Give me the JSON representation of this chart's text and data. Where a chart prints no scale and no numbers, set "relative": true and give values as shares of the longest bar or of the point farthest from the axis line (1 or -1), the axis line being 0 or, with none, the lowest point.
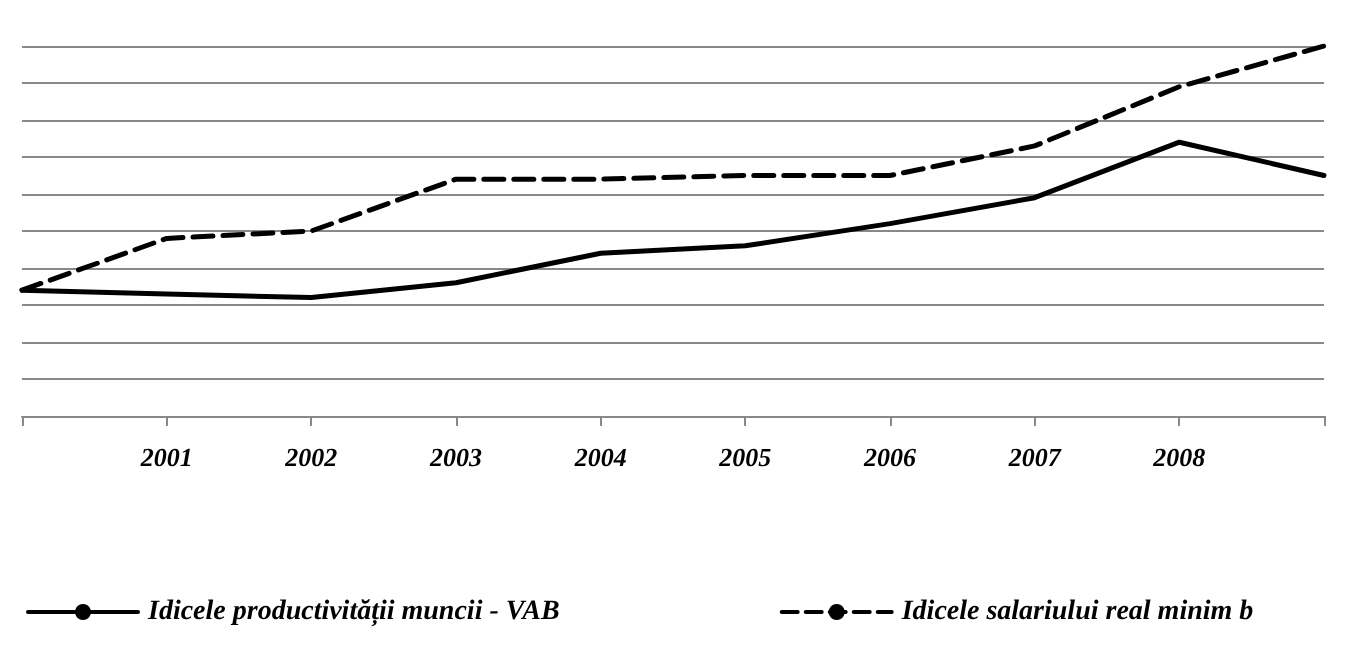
{
  "chart_data": {
    "type": "line",
    "relative": true,
    "categories": [
      null,
      "2001",
      "2002",
      "2003",
      "2004",
      "2005",
      "2006",
      "2007",
      "2008",
      null
    ],
    "series": [
      {
        "name": "Idicele productivității muncii - VAB",
        "color": "#000000",
        "line_style": "solid",
        "values": [
          0.34,
          0.33,
          0.32,
          0.36,
          0.44,
          0.46,
          0.52,
          0.59,
          0.74,
          0.65
        ]
      },
      {
        "name": "Idicele salariului real minim b",
        "color": "#000000",
        "line_style": "dashed",
        "values": [
          0.34,
          0.48,
          0.5,
          0.64,
          0.64,
          0.65,
          0.65,
          0.73,
          0.89,
          1
        ]
      }
    ],
    "grid": "y",
    "legend": "bottom",
    "marker": "none"
  }
}
